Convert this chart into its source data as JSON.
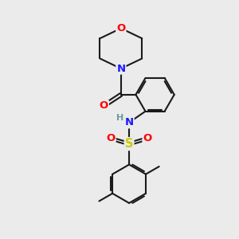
{
  "bg_color": "#ebebeb",
  "bond_color": "#1a1a1a",
  "bond_width": 1.5,
  "dbo": 0.055,
  "atom_colors": {
    "O": "#ff0000",
    "N": "#1a1aff",
    "S": "#cccc00",
    "H": "#6a9a9a",
    "C": "#1a1a1a"
  },
  "font_size": 8.5,
  "fig_size": [
    3.0,
    3.0
  ],
  "dpi": 100
}
